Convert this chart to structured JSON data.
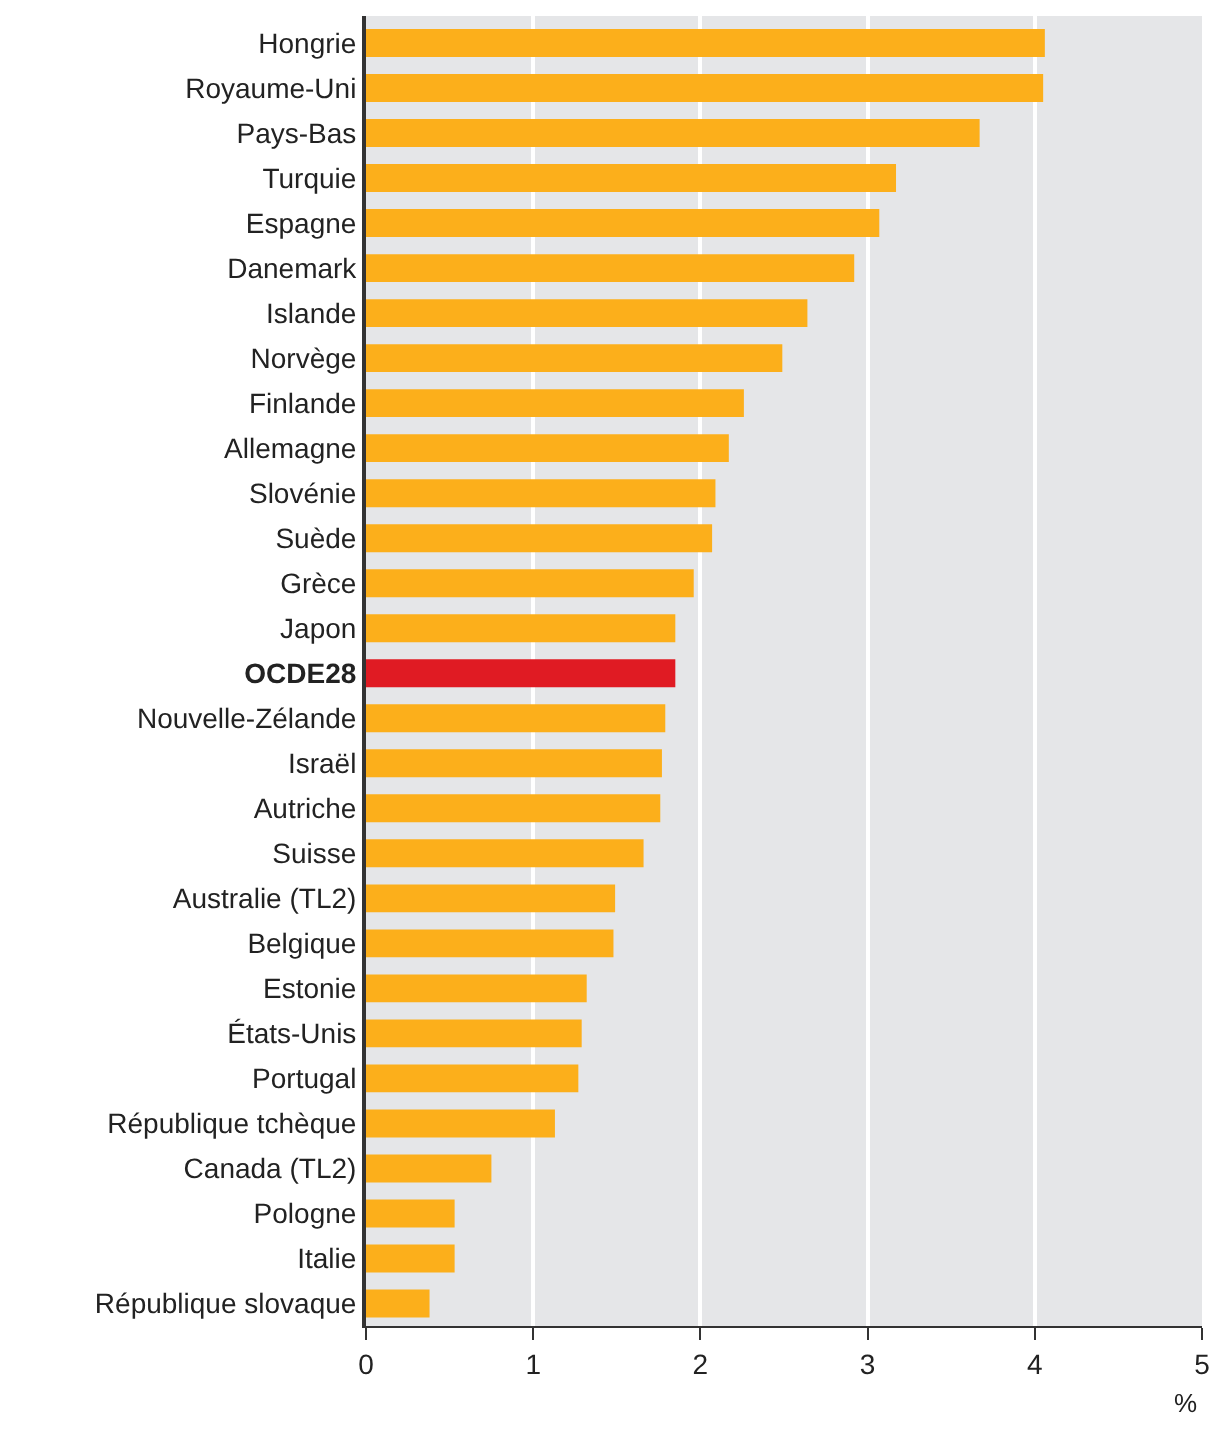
{
  "chart_data": {
    "type": "bar",
    "orientation": "horizontal",
    "xlabel": "%",
    "categories": [
      "Hongrie",
      "Royaume-Uni",
      "Pays-Bas",
      "Turquie",
      "Espagne",
      "Danemark",
      "Islande",
      "Norvège",
      "Finlande",
      "Allemagne",
      "Slovénie",
      "Suède",
      "Grèce",
      "Japon",
      "OCDE28",
      "Nouvelle-Zélande",
      "Israël",
      "Autriche",
      "Suisse",
      "Australie (TL2)",
      "Belgique",
      "Estonie",
      "États-Unis",
      "Portugal",
      "République tchèque",
      "Canada (TL2)",
      "Pologne",
      "Italie",
      "République slovaque"
    ],
    "values": [
      4.06,
      4.05,
      3.67,
      3.17,
      3.07,
      2.92,
      2.64,
      2.49,
      2.26,
      2.17,
      2.09,
      2.07,
      1.96,
      1.85,
      1.85,
      1.79,
      1.77,
      1.76,
      1.66,
      1.49,
      1.48,
      1.32,
      1.29,
      1.27,
      1.13,
      0.75,
      0.53,
      0.53,
      0.38
    ],
    "colors": [
      "#fcaf1b",
      "#fcaf1b",
      "#fcaf1b",
      "#fcaf1b",
      "#fcaf1b",
      "#fcaf1b",
      "#fcaf1b",
      "#fcaf1b",
      "#fcaf1b",
      "#fcaf1b",
      "#fcaf1b",
      "#fcaf1b",
      "#fcaf1b",
      "#fcaf1b",
      "#e01b23",
      "#fcaf1b",
      "#fcaf1b",
      "#fcaf1b",
      "#fcaf1b",
      "#fcaf1b",
      "#fcaf1b",
      "#fcaf1b",
      "#fcaf1b",
      "#fcaf1b",
      "#fcaf1b",
      "#fcaf1b",
      "#fcaf1b",
      "#fcaf1b",
      "#fcaf1b"
    ],
    "xlim": [
      0,
      5
    ],
    "xticks": [
      0,
      1,
      2,
      3,
      4,
      5
    ],
    "grid": "x"
  }
}
